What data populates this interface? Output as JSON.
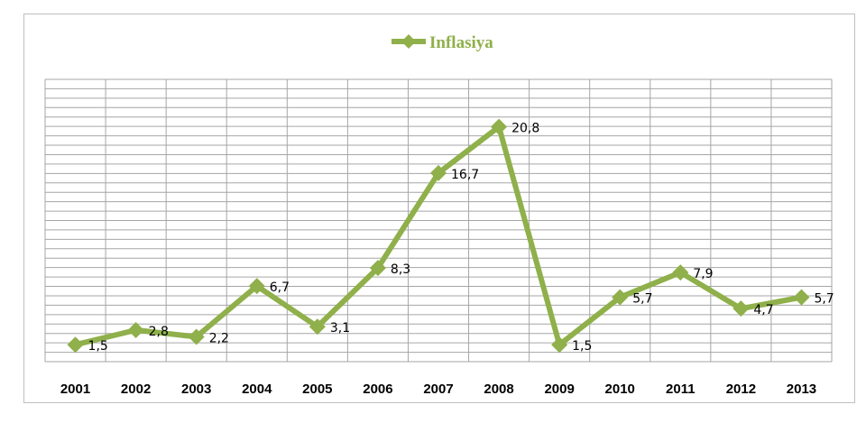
{
  "chart_data": {
    "type": "line",
    "title": "",
    "xlabel": "",
    "ylabel": "",
    "categories": [
      "2001",
      "2002",
      "2003",
      "2004",
      "2005",
      "2006",
      "2007",
      "2008",
      "2009",
      "2010",
      "2011",
      "2012",
      "2013"
    ],
    "series": [
      {
        "name": "Inflasiya",
        "values": [
          1.5,
          2.8,
          2.2,
          6.7,
          3.1,
          8.3,
          16.7,
          20.8,
          1.5,
          5.7,
          7.9,
          4.7,
          5.7
        ],
        "labels": [
          "1,5",
          "2,8",
          "2,2",
          "6,7",
          "3,1",
          "8,3",
          "16,7",
          "20,8",
          "1,5",
          "5,7",
          "7,9",
          "4,7",
          "5,7"
        ],
        "color": "#8fb04a",
        "marker": "diamond"
      }
    ],
    "ylim": [
      0,
      25
    ],
    "grid": true,
    "legend_position": "top-center"
  }
}
